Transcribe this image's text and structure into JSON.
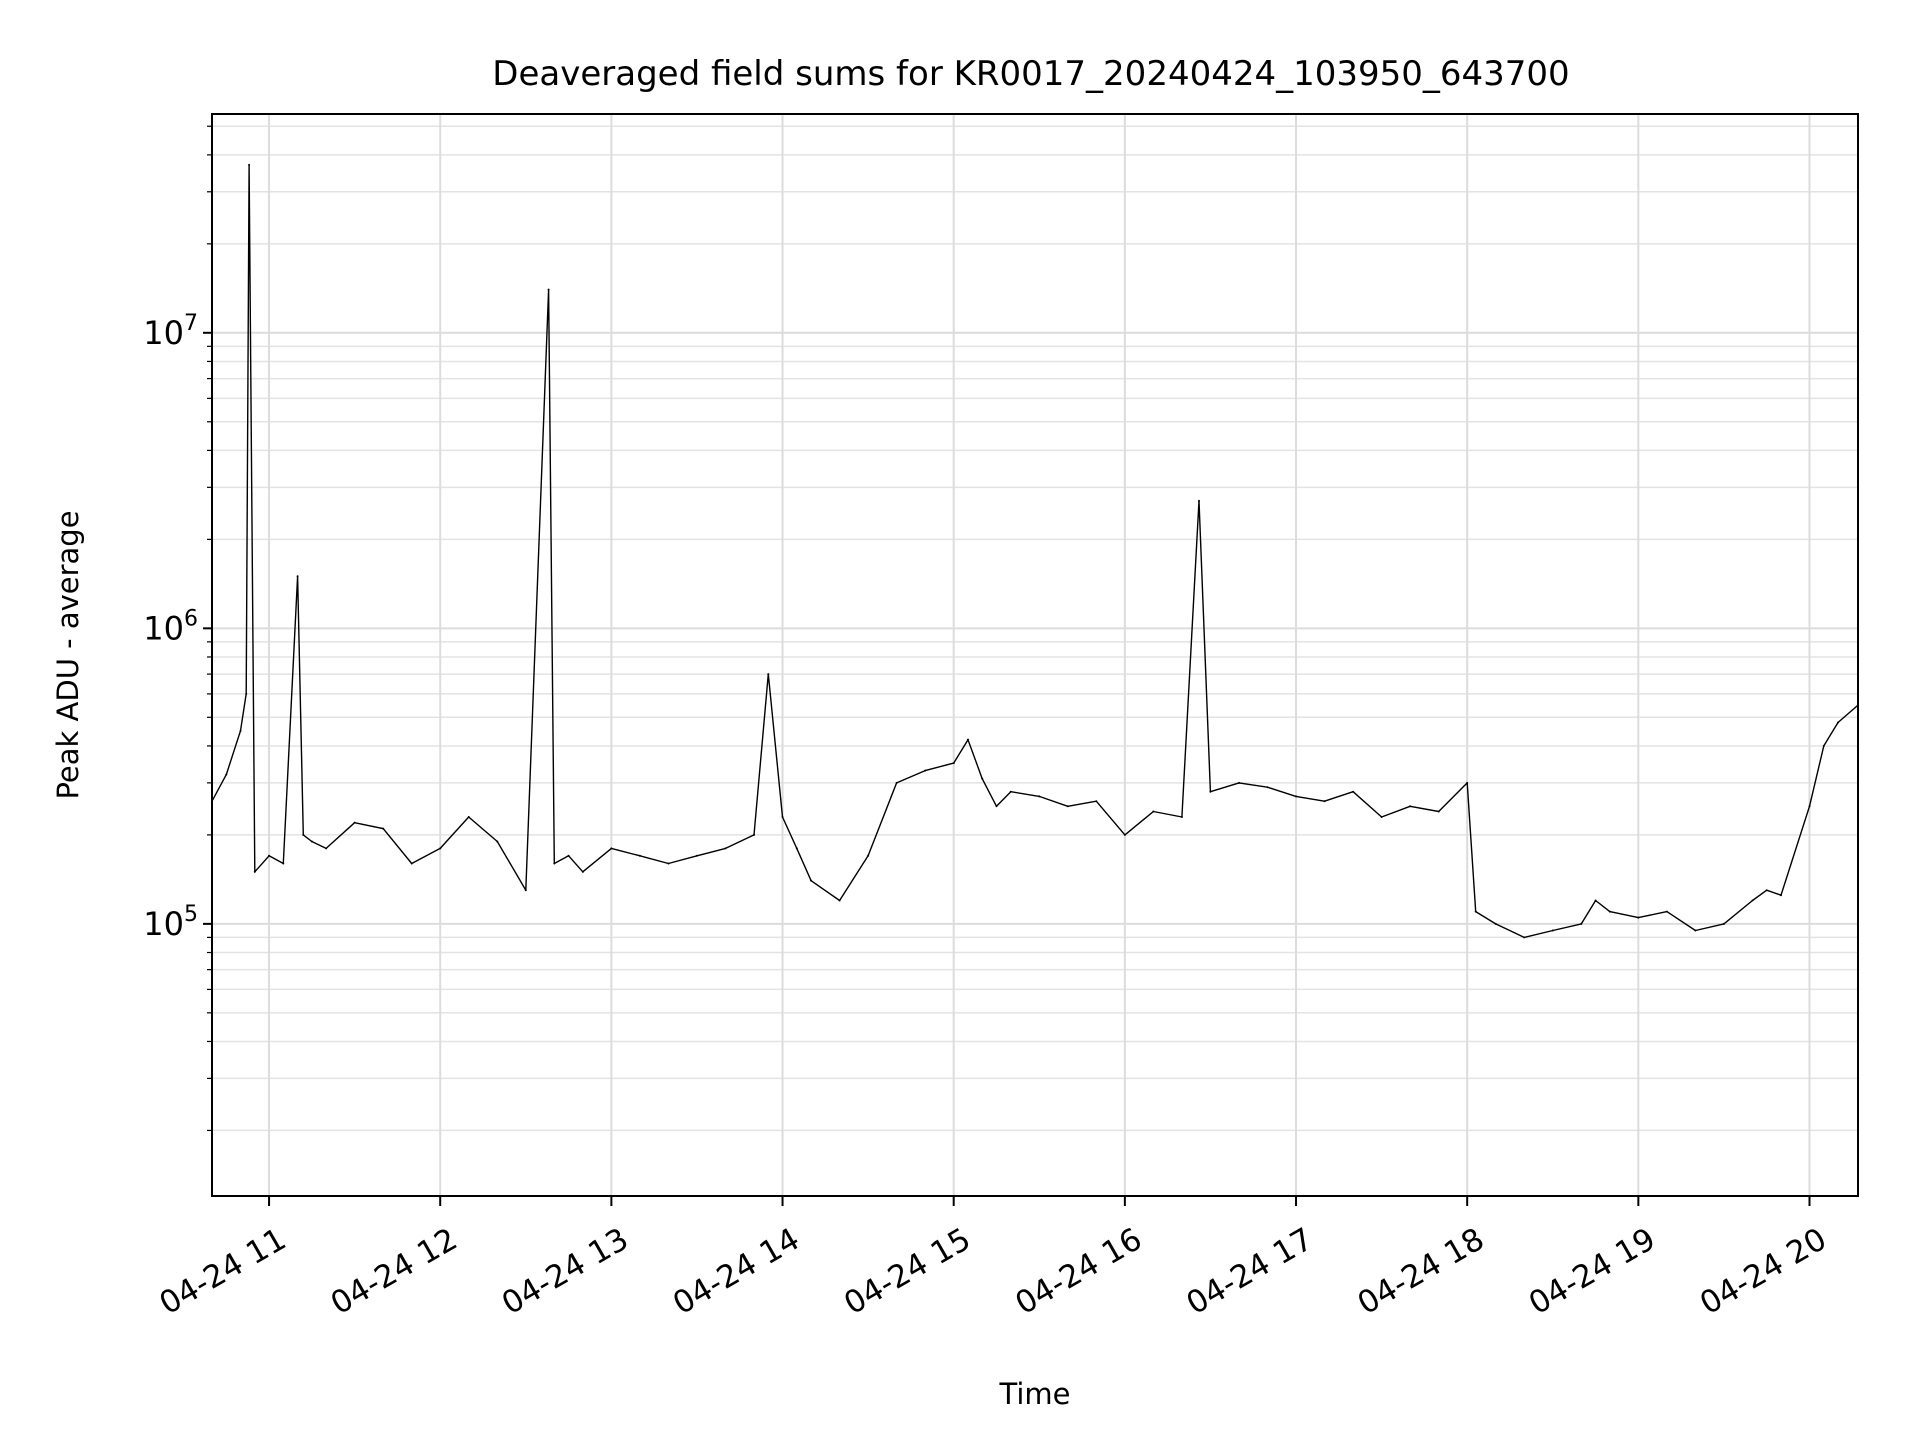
{
  "chart_data": {
    "type": "line",
    "title": "Deaveraged field sums for KR0017_20240424_103950_643700",
    "xlabel": "Time",
    "ylabel": "Peak ADU - average",
    "x_range": [
      "2024-04-24 10:40",
      "2024-04-24 20:17"
    ],
    "ylim": [
      12000,
      55000000
    ],
    "y_scale": "log",
    "grid": true,
    "grid_minor": true,
    "line_color": "#000000",
    "x_ticks": [
      "04-24 11",
      "04-24 12",
      "04-24 13",
      "04-24 14",
      "04-24 15",
      "04-24 16",
      "04-24 17",
      "04-24 18",
      "04-24 19",
      "04-24 20"
    ],
    "x_tick_times": [
      "2024-04-24 11:00",
      "2024-04-24 12:00",
      "2024-04-24 13:00",
      "2024-04-24 14:00",
      "2024-04-24 15:00",
      "2024-04-24 16:00",
      "2024-04-24 17:00",
      "2024-04-24 18:00",
      "2024-04-24 19:00",
      "2024-04-24 20:00"
    ],
    "y_ticks": [
      {
        "value": 100000,
        "base": "10",
        "exp": "5"
      },
      {
        "value": 1000000,
        "base": "10",
        "exp": "6"
      },
      {
        "value": 10000000,
        "base": "10",
        "exp": "7"
      }
    ],
    "series": [
      {
        "x": [
          "2024-04-24 10:40",
          "2024-04-24 10:45",
          "2024-04-24 10:50",
          "2024-04-24 10:52",
          "2024-04-24 10:53",
          "2024-04-24 10:55",
          "2024-04-24 11:00",
          "2024-04-24 11:05",
          "2024-04-24 11:10",
          "2024-04-24 11:12",
          "2024-04-24 11:15",
          "2024-04-24 11:20",
          "2024-04-24 11:30",
          "2024-04-24 11:40",
          "2024-04-24 11:50",
          "2024-04-24 12:00",
          "2024-04-24 12:10",
          "2024-04-24 12:20",
          "2024-04-24 12:30",
          "2024-04-24 12:38",
          "2024-04-24 12:40",
          "2024-04-24 12:45",
          "2024-04-24 12:50",
          "2024-04-24 13:00",
          "2024-04-24 13:10",
          "2024-04-24 13:20",
          "2024-04-24 13:30",
          "2024-04-24 13:40",
          "2024-04-24 13:50",
          "2024-04-24 13:55",
          "2024-04-24 14:00",
          "2024-04-24 14:05",
          "2024-04-24 14:10",
          "2024-04-24 14:20",
          "2024-04-24 14:30",
          "2024-04-24 14:40",
          "2024-04-24 14:50",
          "2024-04-24 15:00",
          "2024-04-24 15:05",
          "2024-04-24 15:10",
          "2024-04-24 15:15",
          "2024-04-24 15:20",
          "2024-04-24 15:30",
          "2024-04-24 15:40",
          "2024-04-24 15:50",
          "2024-04-24 16:00",
          "2024-04-24 16:10",
          "2024-04-24 16:20",
          "2024-04-24 16:26",
          "2024-04-24 16:30",
          "2024-04-24 16:40",
          "2024-04-24 16:50",
          "2024-04-24 17:00",
          "2024-04-24 17:10",
          "2024-04-24 17:20",
          "2024-04-24 17:30",
          "2024-04-24 17:40",
          "2024-04-24 17:50",
          "2024-04-24 18:00",
          "2024-04-24 18:03",
          "2024-04-24 18:10",
          "2024-04-24 18:20",
          "2024-04-24 18:30",
          "2024-04-24 18:40",
          "2024-04-24 18:45",
          "2024-04-24 18:50",
          "2024-04-24 19:00",
          "2024-04-24 19:10",
          "2024-04-24 19:20",
          "2024-04-24 19:30",
          "2024-04-24 19:40",
          "2024-04-24 19:45",
          "2024-04-24 19:50",
          "2024-04-24 20:00",
          "2024-04-24 20:05",
          "2024-04-24 20:10",
          "2024-04-24 20:17"
        ],
        "y": [
          260000,
          320000,
          450000,
          600000,
          37000000,
          150000,
          170000,
          160000,
          1500000,
          200000,
          190000,
          180000,
          220000,
          210000,
          160000,
          180000,
          230000,
          190000,
          130000,
          14000000,
          160000,
          170000,
          150000,
          180000,
          170000,
          160000,
          170000,
          180000,
          200000,
          700000,
          230000,
          180000,
          140000,
          120000,
          170000,
          300000,
          330000,
          350000,
          420000,
          310000,
          250000,
          280000,
          270000,
          250000,
          260000,
          200000,
          240000,
          230000,
          2700000,
          280000,
          300000,
          290000,
          270000,
          260000,
          280000,
          230000,
          250000,
          240000,
          300000,
          110000,
          100000,
          90000,
          95000,
          100000,
          120000,
          110000,
          105000,
          110000,
          95000,
          100000,
          120000,
          130000,
          125000,
          250000,
          400000,
          480000,
          550000
        ]
      }
    ]
  }
}
